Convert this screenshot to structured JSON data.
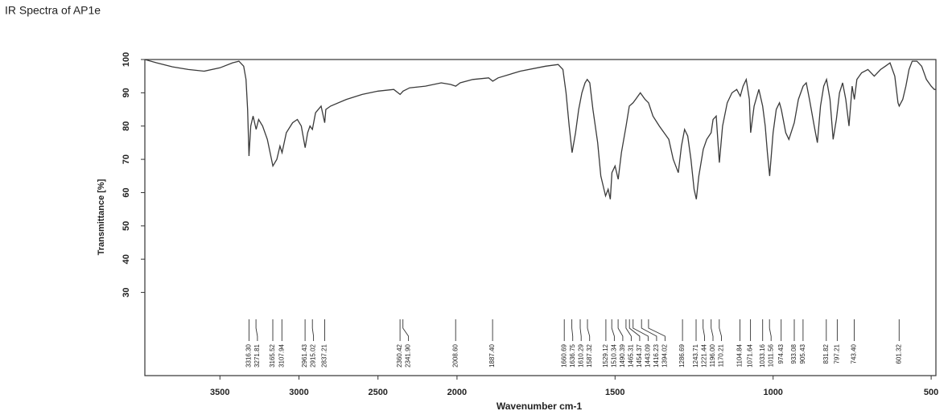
{
  "chart_data": {
    "type": "line",
    "title": "IR Spectra of AP1e",
    "xlabel": "Wavenumber cm-1",
    "ylabel": "Transmittance [%]",
    "xlim": [
      3975,
      485
    ],
    "xscale_break": 2000,
    "xticks": [
      3500,
      3000,
      2500,
      2000,
      1500,
      1000,
      500
    ],
    "ylim": [
      5,
      100
    ],
    "yticks": [
      30,
      40,
      50,
      60,
      70,
      80,
      90,
      100
    ],
    "color": "#3a3a3a",
    "x": [
      3975,
      3900,
      3800,
      3700,
      3600,
      3500,
      3420,
      3380,
      3350,
      3335,
      3325,
      3316,
      3305,
      3290,
      3271,
      3255,
      3230,
      3200,
      3165,
      3140,
      3120,
      3107,
      3080,
      3040,
      3010,
      2985,
      2961,
      2945,
      2930,
      2915,
      2895,
      2860,
      2837,
      2830,
      2800,
      2700,
      2600,
      2500,
      2400,
      2360,
      2341,
      2300,
      2200,
      2100,
      2040,
      2008,
      1990,
      1950,
      1900,
      1887,
      1870,
      1800,
      1720,
      1680,
      1665,
      1655,
      1645,
      1636,
      1625,
      1615,
      1605,
      1595,
      1588,
      1580,
      1570,
      1555,
      1545,
      1530,
      1522,
      1515,
      1510,
      1500,
      1490,
      1480,
      1465,
      1455,
      1443,
      1435,
      1420,
      1405,
      1394,
      1380,
      1360,
      1345,
      1330,
      1316,
      1300,
      1290,
      1280,
      1270,
      1260,
      1250,
      1243,
      1235,
      1221,
      1210,
      1196,
      1190,
      1180,
      1170,
      1160,
      1145,
      1130,
      1115,
      1104,
      1095,
      1085,
      1075,
      1071,
      1060,
      1045,
      1033,
      1025,
      1018,
      1011,
      1000,
      990,
      980,
      974,
      960,
      950,
      933,
      920,
      905,
      895,
      885,
      870,
      860,
      850,
      840,
      831,
      820,
      810,
      800,
      790,
      780,
      770,
      760,
      750,
      743,
      735,
      720,
      700,
      680,
      660,
      645,
      630,
      615,
      605,
      601,
      590,
      580,
      570,
      560,
      545,
      530,
      515,
      500,
      490,
      485
    ],
    "values": [
      100,
      99,
      97.8,
      97,
      96.5,
      97.5,
      99,
      99.5,
      98,
      94,
      85,
      71,
      80,
      83,
      79,
      82,
      80,
      76,
      68,
      70,
      74,
      72,
      78,
      81,
      82,
      80,
      73.5,
      78,
      80,
      79,
      84,
      86,
      81,
      85,
      86,
      88,
      89.5,
      90.5,
      91,
      89.5,
      90.5,
      91.5,
      92,
      93,
      92.5,
      92,
      93,
      94,
      94.5,
      93.5,
      94.5,
      96.5,
      98,
      98.5,
      97,
      90,
      80,
      72,
      78,
      85,
      90,
      93,
      94,
      93,
      85,
      75,
      65,
      59,
      61,
      58,
      66,
      68,
      64,
      72,
      80,
      86,
      87,
      88,
      90,
      88,
      87,
      83,
      80,
      78,
      76,
      70,
      66,
      74,
      79,
      77,
      70,
      61,
      58,
      65,
      73,
      76,
      78,
      82,
      83,
      69,
      80,
      87,
      90,
      91,
      89,
      92,
      94,
      88,
      78,
      86,
      91,
      86,
      80,
      72,
      65,
      78,
      85,
      87,
      85,
      78,
      76,
      81,
      88,
      92,
      93,
      88,
      80,
      75,
      86,
      92,
      94,
      88,
      76,
      82,
      90,
      93,
      88,
      80,
      92,
      88,
      94,
      96,
      97,
      95,
      97,
      98,
      99,
      95,
      87,
      86,
      88,
      92,
      97,
      99.5,
      99.5,
      98,
      94,
      92,
      91,
      91
    ],
    "peak_labels": [
      {
        "value": 3316.3,
        "label": "3316.30"
      },
      3271.81,
      3165.52,
      3107.94,
      2961.43,
      2915.02,
      2837.21,
      2360.42,
      {
        "value": 2341.9,
        "label": "2341.90"
      },
      {
        "value": 2008.6,
        "label": "2008.60"
      },
      {
        "value": 1887.4,
        "label": "1887.40"
      },
      1660.69,
      1636.75,
      1610.29,
      1587.32,
      1529.12,
      1510.34,
      1490.39,
      1465.31,
      1454.37,
      1443.09,
      1416.23,
      1394.02,
      1286.69,
      1243.71,
      1221.44,
      {
        "value": 1196,
        "label": "1196.00"
      },
      1170.21,
      1104.84,
      1071.64,
      1033.16,
      1011.56,
      974.43,
      933.08,
      905.43,
      831.82,
      797.21,
      {
        "value": 743.4,
        "label": "743.40"
      },
      601.32
    ]
  }
}
